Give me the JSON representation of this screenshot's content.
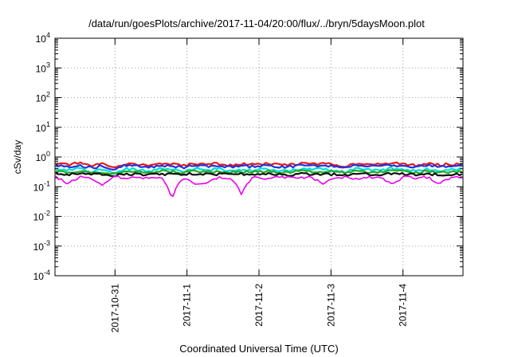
{
  "chart_data": {
    "type": "line",
    "title": "/data/run/goesPlots/archive/2017-11-04/20:00/flux/../bryn/5daysMoon.plot",
    "xlabel": "Coordinated Universal Time (UTC)",
    "ylabel": "cSv/day",
    "yscale": "log",
    "ylim": [
      0.0001,
      10000
    ],
    "xlim": [
      "2017-10-30T04:00",
      "2017-11-04T20:00"
    ],
    "grid": true,
    "yticks": [
      {
        "base": "10",
        "exp": "-4"
      },
      {
        "base": "10",
        "exp": "-3"
      },
      {
        "base": "10",
        "exp": "-2"
      },
      {
        "base": "10",
        "exp": "-1"
      },
      {
        "base": "10",
        "exp": "0"
      },
      {
        "base": "10",
        "exp": "1"
      },
      {
        "base": "10",
        "exp": "2"
      },
      {
        "base": "10",
        "exp": "3"
      },
      {
        "base": "10",
        "exp": "4"
      }
    ],
    "xticks": [
      {
        "label": "2017-10-31",
        "date": "2017-10-31T00:00"
      },
      {
        "label": "2017-11-1",
        "date": "2017-11-01T00:00"
      },
      {
        "label": "2017-11-2",
        "date": "2017-11-02T00:00"
      },
      {
        "label": "2017-11-3",
        "date": "2017-11-03T00:00"
      },
      {
        "label": "2017-11-4",
        "date": "2017-11-04T00:00"
      }
    ],
    "series": [
      {
        "color": "#e41a1c",
        "level": 0.6,
        "values": [
          0.6,
          0.55,
          0.62,
          0.5,
          0.58,
          0.45,
          0.6,
          0.56,
          0.52,
          0.6,
          0.57,
          0.5,
          0.61,
          0.56,
          0.6,
          0.52,
          0.58,
          0.55,
          0.6,
          0.55,
          0.54,
          0.6,
          0.58,
          0.6,
          0.55,
          0.5,
          0.62,
          0.58,
          0.55,
          0.62,
          0.58,
          0.52,
          0.6,
          0.55,
          0.57,
          0.6
        ]
      },
      {
        "color": "#2233dd",
        "level": 0.52,
        "values": [
          0.52,
          0.48,
          0.54,
          0.42,
          0.5,
          0.38,
          0.52,
          0.49,
          0.45,
          0.52,
          0.5,
          0.43,
          0.53,
          0.48,
          0.52,
          0.45,
          0.5,
          0.47,
          0.52,
          0.48,
          0.46,
          0.52,
          0.5,
          0.52,
          0.48,
          0.42,
          0.55,
          0.5,
          0.47,
          0.54,
          0.5,
          0.45,
          0.52,
          0.48,
          0.49,
          0.52
        ]
      },
      {
        "color": "#00dddd",
        "level": 0.4,
        "values": [
          0.4,
          0.36,
          0.42,
          0.3,
          0.38,
          0.26,
          0.4,
          0.37,
          0.33,
          0.4,
          0.38,
          0.31,
          0.41,
          0.36,
          0.4,
          0.33,
          0.38,
          0.35,
          0.4,
          0.36,
          0.34,
          0.4,
          0.38,
          0.4,
          0.36,
          0.3,
          0.43,
          0.38,
          0.35,
          0.42,
          0.38,
          0.33,
          0.4,
          0.36,
          0.37,
          0.4
        ]
      },
      {
        "color": "#22aa22",
        "level": 0.33,
        "values": [
          0.33,
          0.31,
          0.34,
          0.28,
          0.32,
          0.26,
          0.33,
          0.32,
          0.3,
          0.33,
          0.32,
          0.29,
          0.34,
          0.31,
          0.33,
          0.3,
          0.32,
          0.31,
          0.33,
          0.31,
          0.3,
          0.33,
          0.32,
          0.33,
          0.31,
          0.28,
          0.34,
          0.32,
          0.31,
          0.34,
          0.32,
          0.3,
          0.33,
          0.31,
          0.32,
          0.33
        ]
      },
      {
        "color": "#111111",
        "level": 0.27,
        "values": [
          0.27,
          0.26,
          0.28,
          0.25,
          0.27,
          0.24,
          0.27,
          0.26,
          0.25,
          0.27,
          0.26,
          0.25,
          0.28,
          0.26,
          0.27,
          0.25,
          0.27,
          0.26,
          0.27,
          0.26,
          0.25,
          0.27,
          0.27,
          0.27,
          0.26,
          0.25,
          0.28,
          0.27,
          0.26,
          0.28,
          0.27,
          0.25,
          0.27,
          0.26,
          0.26,
          0.27
        ]
      },
      {
        "color": "#ee00ee",
        "level": 0.21,
        "values": [
          0.21,
          0.12,
          0.21,
          0.2,
          0.11,
          0.21,
          0.2,
          0.21,
          0.19,
          0.21,
          0.03,
          0.2,
          0.12,
          0.13,
          0.21,
          0.2,
          0.05,
          0.21,
          0.16,
          0.21,
          0.2,
          0.2,
          0.21,
          0.12,
          0.2,
          0.21,
          0.19,
          0.21,
          0.2,
          0.12,
          0.21,
          0.2,
          0.21,
          0.12,
          0.2,
          0.21
        ]
      }
    ]
  }
}
